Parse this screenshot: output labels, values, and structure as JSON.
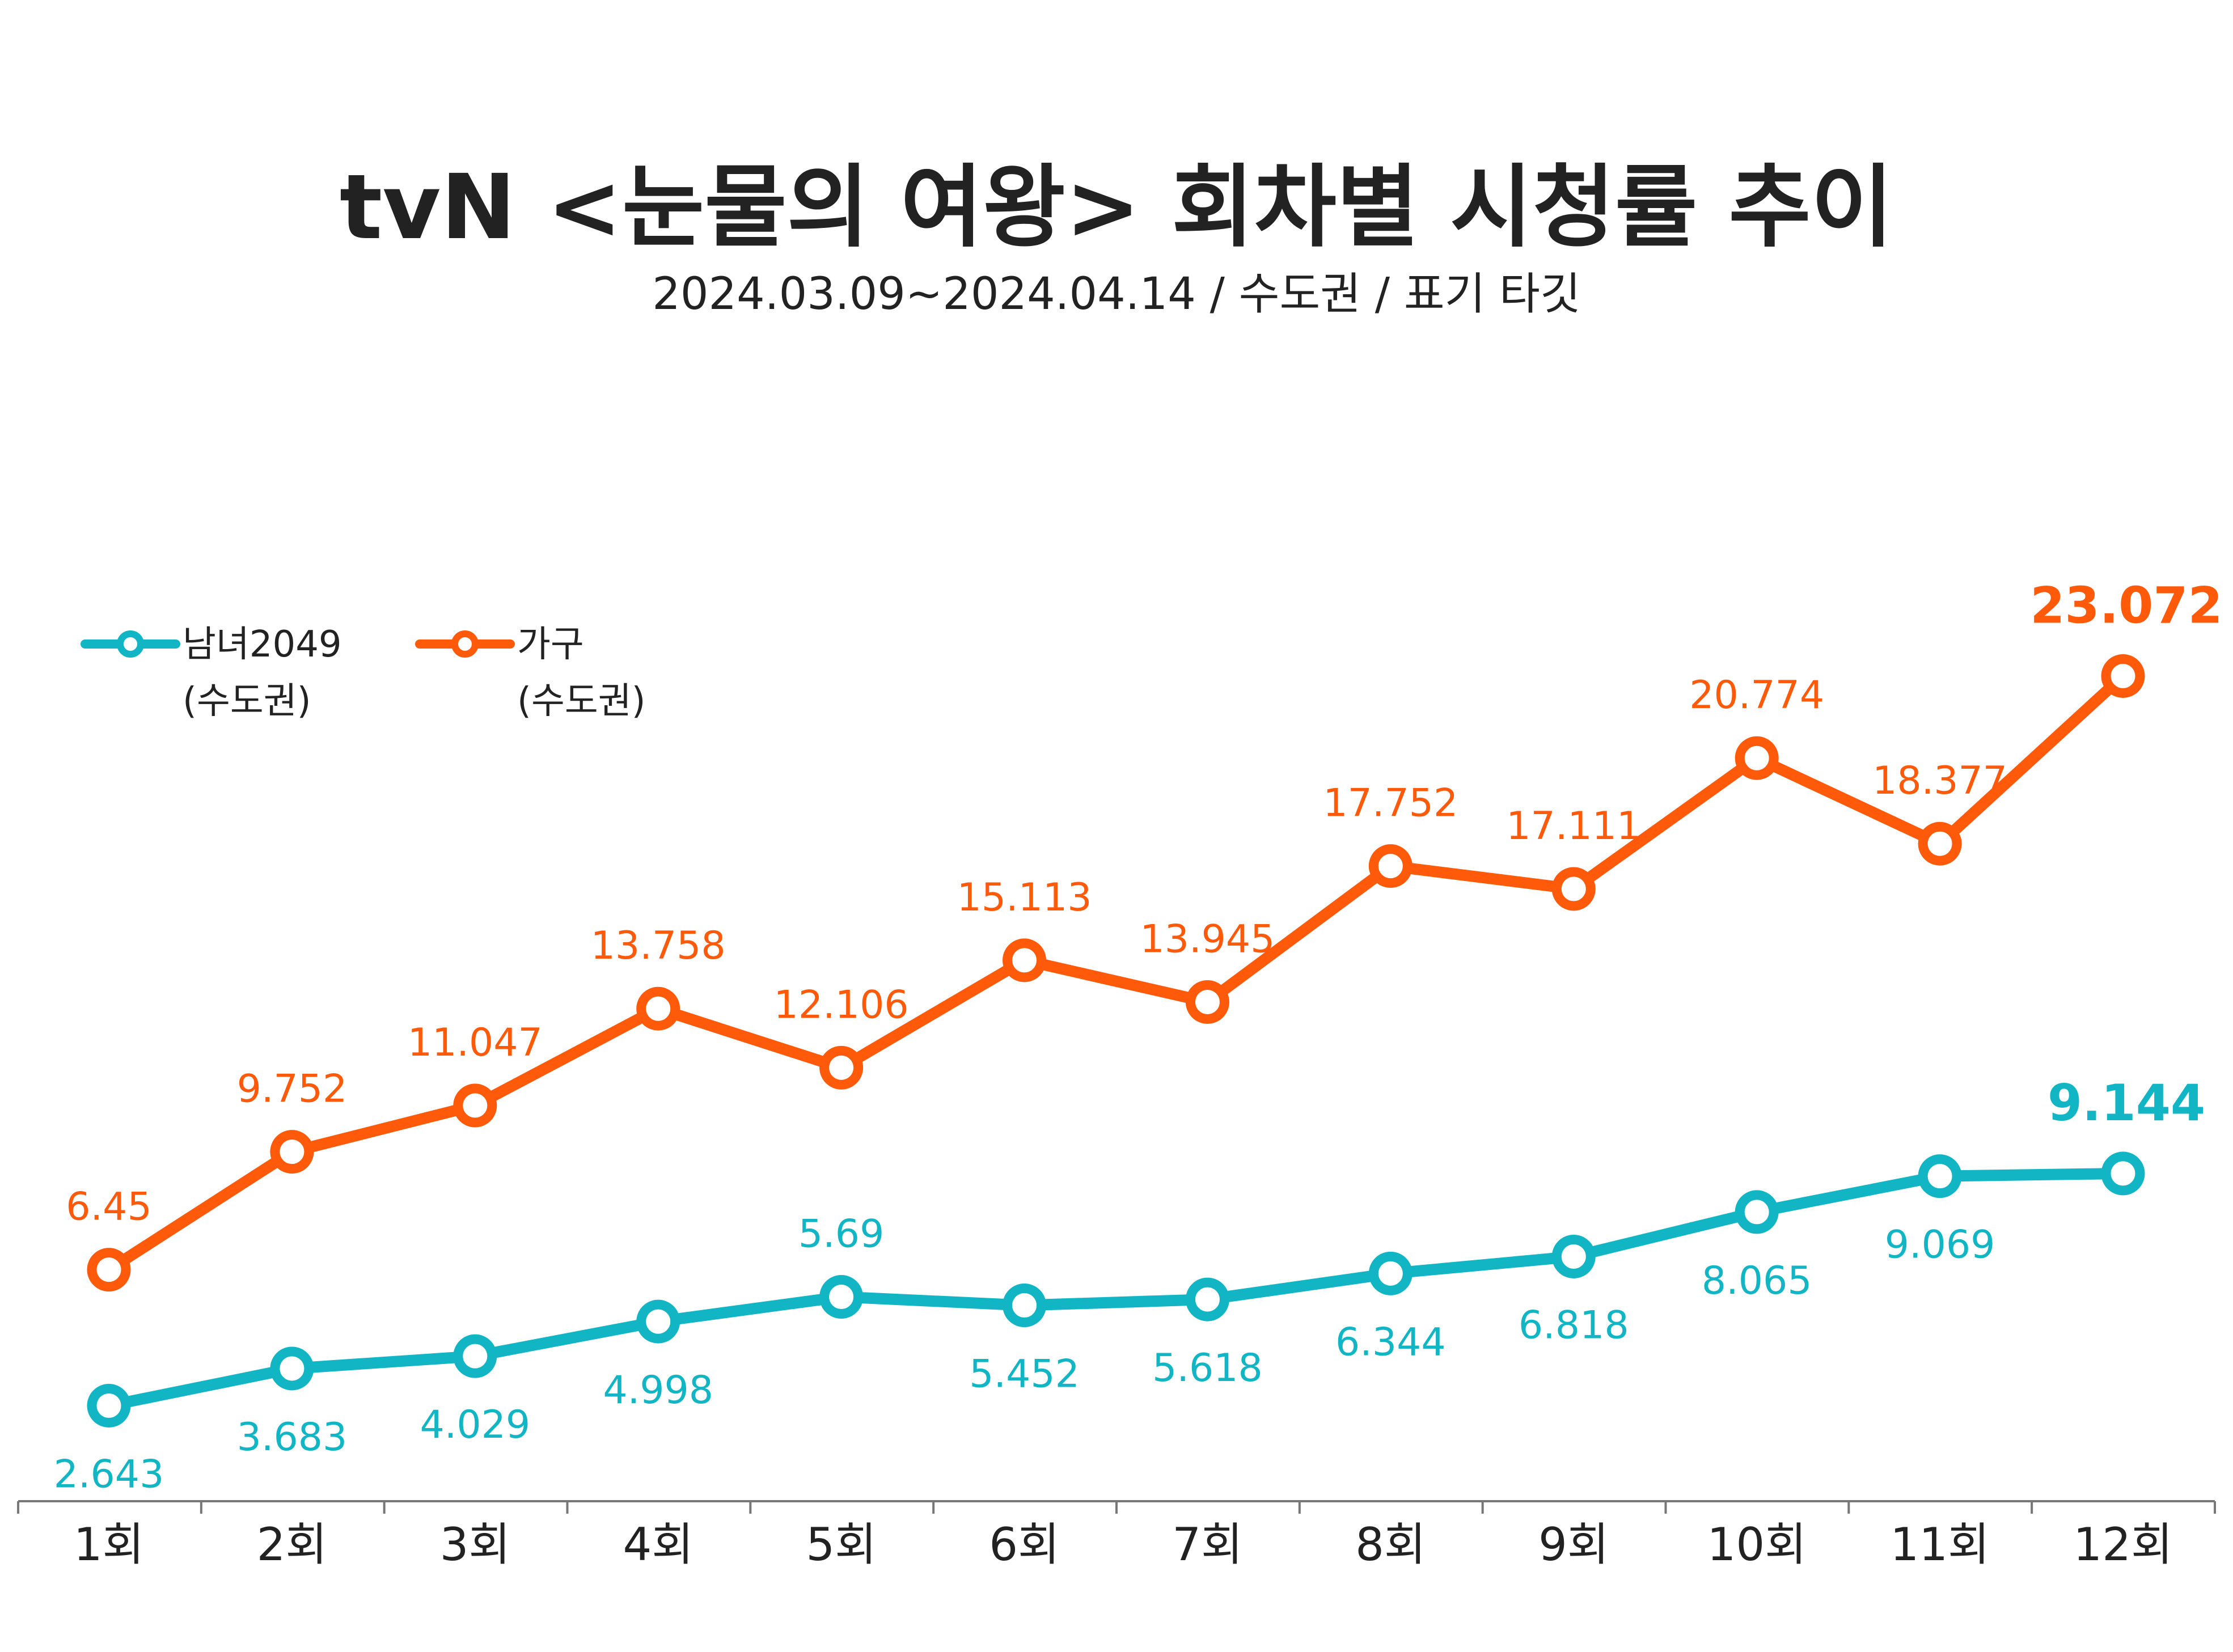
{
  "chart_data": {
    "type": "line",
    "title": "tvN <눈물의 여왕> 회차별 시청률 추이",
    "subtitle": "2024.03.09~2024.04.14 / 수도권 / 표기 타깃",
    "categories": [
      "1회",
      "2회",
      "3회",
      "4회",
      "5회",
      "6회",
      "7회",
      "8회",
      "9회",
      "10회",
      "11회",
      "12회"
    ],
    "ylim": [
      0,
      25
    ],
    "grid": false,
    "legend_position": "top-left",
    "series": [
      {
        "name": "남녀2049",
        "sub": "(수도권)",
        "color": "#12b5c4",
        "labels": [
          "2.643",
          "3.683",
          "4.029",
          "4.998",
          "5.69",
          "5.452",
          "5.618",
          "6.344",
          "6.818",
          "8.065",
          "9.069",
          "9.144"
        ],
        "values": [
          2.643,
          3.683,
          4.029,
          4.998,
          5.69,
          5.452,
          5.618,
          6.344,
          6.818,
          8.065,
          9.069,
          9.144
        ],
        "label_side": [
          "below",
          "below",
          "below",
          "below",
          "above",
          "below",
          "below",
          "below",
          "below",
          "below",
          "below",
          "above"
        ]
      },
      {
        "name": "가구",
        "sub": "(수도권)",
        "color": "#ff5a0a",
        "labels": [
          "6.45",
          "9.752",
          "11.047",
          "13.758",
          "12.106",
          "15.113",
          "13.945",
          "17.752",
          "17.111",
          "20.774",
          "18.377",
          "23.072"
        ],
        "values": [
          6.45,
          9.752,
          11.047,
          13.758,
          12.106,
          15.113,
          13.945,
          17.752,
          17.111,
          20.774,
          18.377,
          23.072
        ],
        "label_side": [
          "above",
          "above",
          "above",
          "above",
          "above",
          "above",
          "above",
          "above",
          "above",
          "above",
          "above",
          "above"
        ]
      }
    ]
  }
}
